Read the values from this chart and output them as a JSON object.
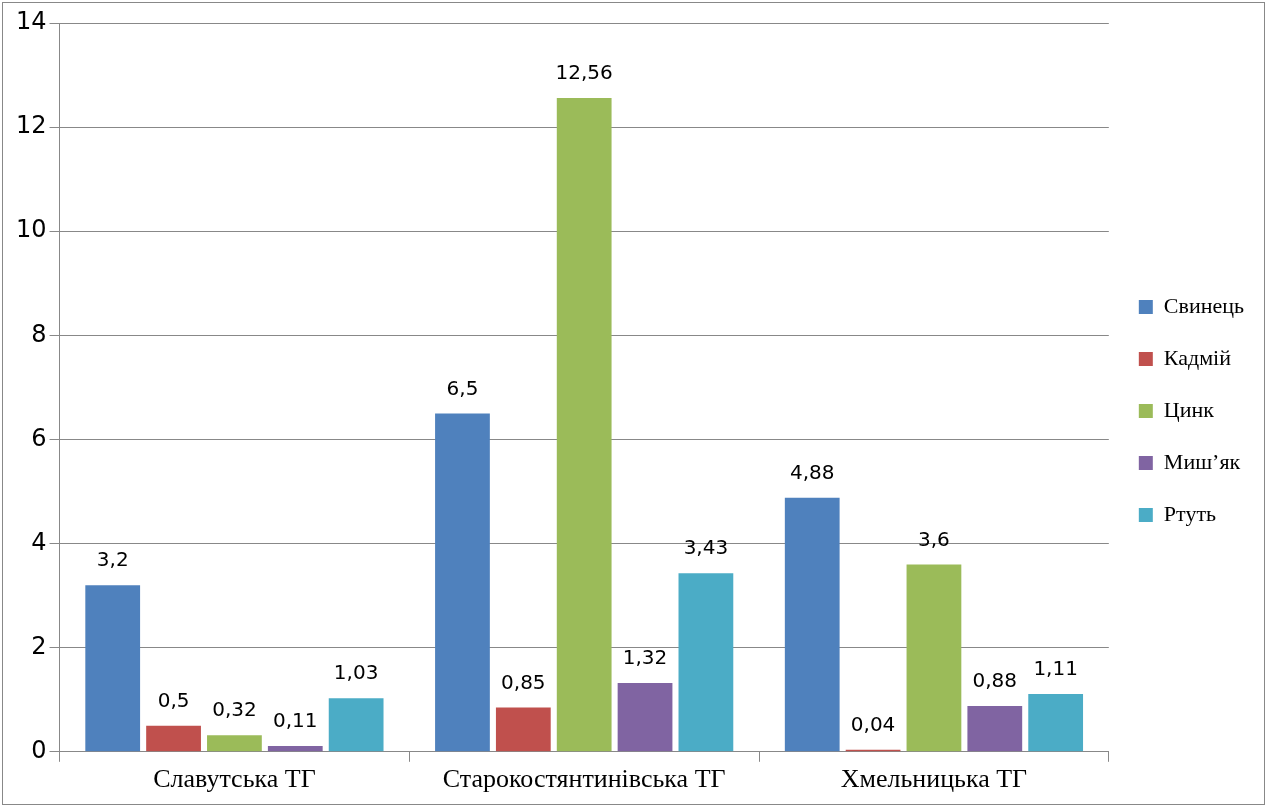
{
  "chart_data": {
    "type": "bar",
    "categories": [
      "Славутська ТГ",
      "Старокостянтинівська ТГ",
      "Хмельницька ТГ"
    ],
    "series": [
      {
        "name": "Свинець",
        "color": "#4f81bd",
        "values": [
          3.2,
          6.5,
          4.88
        ],
        "value_labels": [
          "3,2",
          "6,5",
          "4,88"
        ]
      },
      {
        "name": "Кадмій",
        "color": "#c0504d",
        "values": [
          0.5,
          0.85,
          0.04
        ],
        "value_labels": [
          "0,5",
          "0,85",
          "0,04"
        ]
      },
      {
        "name": "Цинк",
        "color": "#9bbb59",
        "values": [
          0.32,
          12.56,
          3.6
        ],
        "value_labels": [
          "0,32",
          "12,56",
          "3,6"
        ]
      },
      {
        "name": "Миш’як",
        "color": "#8064a2",
        "values": [
          0.11,
          1.32,
          0.88
        ],
        "value_labels": [
          "0,11",
          "1,32",
          "0,88"
        ]
      },
      {
        "name": "Ртуть",
        "color": "#4bacc6",
        "values": [
          1.03,
          3.43,
          1.11
        ],
        "value_labels": [
          "1,03",
          "3,43",
          "1,11"
        ]
      }
    ],
    "ylim": [
      0,
      14
    ],
    "yticks": [
      0,
      2,
      4,
      6,
      8,
      10,
      12,
      14
    ],
    "grid": "y",
    "legend": "right"
  }
}
